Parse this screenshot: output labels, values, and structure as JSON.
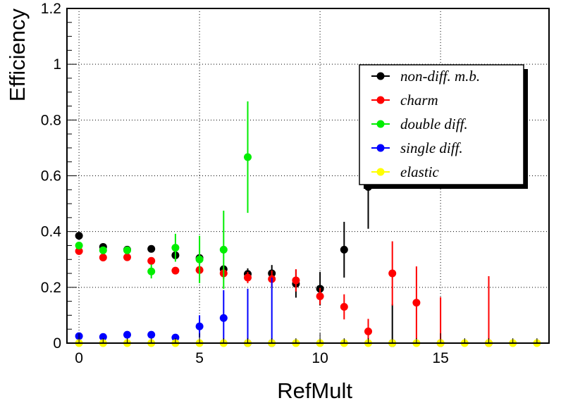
{
  "chart_data": {
    "type": "scatter",
    "xlabel": "RefMult",
    "ylabel": "Efficiency",
    "xlim": [
      -0.5,
      19.5
    ],
    "ylim": [
      0,
      1.2
    ],
    "xticks": [
      0,
      5,
      10,
      15
    ],
    "xtick_labels": [
      "0",
      "5",
      "10",
      "15"
    ],
    "yticks": [
      0,
      0.2,
      0.4,
      0.6,
      0.8,
      1,
      1.2
    ],
    "ytick_labels": [
      "0",
      "0.2",
      "0.4",
      "0.6",
      "0.8",
      "1",
      "1.2"
    ],
    "grid": true,
    "legend_position": "top-right",
    "series": [
      {
        "name": "non-diff. m.b.",
        "color": "#000000",
        "points": [
          {
            "x": 0,
            "y": 0.385,
            "err": 0.01
          },
          {
            "x": 1,
            "y": 0.345,
            "err": 0.01
          },
          {
            "x": 2,
            "y": 0.335,
            "err": 0.01
          },
          {
            "x": 3,
            "y": 0.338,
            "err": 0.01
          },
          {
            "x": 4,
            "y": 0.315,
            "err": 0.01
          },
          {
            "x": 5,
            "y": 0.305,
            "err": 0.01
          },
          {
            "x": 6,
            "y": 0.265,
            "err": 0.015
          },
          {
            "x": 7,
            "y": 0.248,
            "err": 0.02
          },
          {
            "x": 8,
            "y": 0.25,
            "err": 0.03
          },
          {
            "x": 9,
            "y": 0.213,
            "err": 0.05
          },
          {
            "x": 10,
            "y": 0.195,
            "err": 0.06
          },
          {
            "x": 11,
            "y": 0.335,
            "err": 0.1
          },
          {
            "x": 12,
            "y": 0.56,
            "err": 0.15
          },
          {
            "x": 13,
            "y": 0.0,
            "err": 0.14,
            "err_up_only": true
          }
        ]
      },
      {
        "name": "charm",
        "color": "#ff0000",
        "points": [
          {
            "x": 0,
            "y": 0.33,
            "err": 0.01
          },
          {
            "x": 1,
            "y": 0.307,
            "err": 0.01
          },
          {
            "x": 2,
            "y": 0.308,
            "err": 0.01
          },
          {
            "x": 3,
            "y": 0.295,
            "err": 0.01
          },
          {
            "x": 4,
            "y": 0.26,
            "err": 0.01
          },
          {
            "x": 5,
            "y": 0.262,
            "err": 0.015
          },
          {
            "x": 6,
            "y": 0.25,
            "err": 0.02
          },
          {
            "x": 7,
            "y": 0.235,
            "err": 0.02
          },
          {
            "x": 8,
            "y": 0.23,
            "err": 0.03
          },
          {
            "x": 9,
            "y": 0.225,
            "err": 0.04
          },
          {
            "x": 10,
            "y": 0.168,
            "err": 0.03
          },
          {
            "x": 11,
            "y": 0.13,
            "err": 0.045
          },
          {
            "x": 12,
            "y": 0.042,
            "err": 0.045
          },
          {
            "x": 13,
            "y": 0.25,
            "err": 0.115
          },
          {
            "x": 14,
            "y": 0.145,
            "err": 0.13
          },
          {
            "x": 15,
            "y": 0.0,
            "err": 0.165,
            "err_up_only": true
          },
          {
            "x": 17,
            "y": 0.0,
            "err": 0.24,
            "err_up_only": true
          }
        ]
      },
      {
        "name": "double diff.",
        "color": "#00ee00",
        "points": [
          {
            "x": 0,
            "y": 0.35,
            "err": 0.01
          },
          {
            "x": 1,
            "y": 0.333,
            "err": 0.01
          },
          {
            "x": 2,
            "y": 0.333,
            "err": 0.01
          },
          {
            "x": 3,
            "y": 0.257,
            "err": 0.025
          },
          {
            "x": 4,
            "y": 0.342,
            "err": 0.05
          },
          {
            "x": 5,
            "y": 0.3,
            "err": 0.085
          },
          {
            "x": 6,
            "y": 0.335,
            "err": 0.14
          },
          {
            "x": 7,
            "y": 0.667,
            "err": 0.2
          }
        ]
      },
      {
        "name": "single diff.",
        "color": "#0000ff",
        "points": [
          {
            "x": 0,
            "y": 0.025,
            "err": 0.005
          },
          {
            "x": 1,
            "y": 0.022,
            "err": 0.005
          },
          {
            "x": 2,
            "y": 0.03,
            "err": 0.006
          },
          {
            "x": 3,
            "y": 0.03,
            "err": 0.008
          },
          {
            "x": 4,
            "y": 0.02,
            "err": 0.01
          },
          {
            "x": 5,
            "y": 0.06,
            "err": 0.04
          },
          {
            "x": 6,
            "y": 0.09,
            "err": 0.1
          },
          {
            "x": 7,
            "y": 0.0,
            "err": 0.195,
            "err_up_only": true
          },
          {
            "x": 8,
            "y": 0.0,
            "err": 0.235,
            "err_up_only": true
          }
        ]
      },
      {
        "name": "elastic",
        "color": "#ffff00",
        "points": [
          {
            "x": 0,
            "y": 0
          },
          {
            "x": 1,
            "y": 0
          },
          {
            "x": 2,
            "y": 0
          },
          {
            "x": 3,
            "y": 0
          },
          {
            "x": 4,
            "y": 0
          },
          {
            "x": 5,
            "y": 0
          },
          {
            "x": 6,
            "y": 0
          },
          {
            "x": 7,
            "y": 0
          },
          {
            "x": 8,
            "y": 0
          },
          {
            "x": 9,
            "y": 0
          },
          {
            "x": 10,
            "y": 0
          },
          {
            "x": 11,
            "y": 0
          },
          {
            "x": 12,
            "y": 0
          },
          {
            "x": 13,
            "y": 0
          },
          {
            "x": 14,
            "y": 0
          },
          {
            "x": 15,
            "y": 0
          },
          {
            "x": 16,
            "y": 0
          },
          {
            "x": 17,
            "y": 0
          },
          {
            "x": 18,
            "y": 0
          },
          {
            "x": 19,
            "y": 0
          }
        ]
      }
    ]
  }
}
